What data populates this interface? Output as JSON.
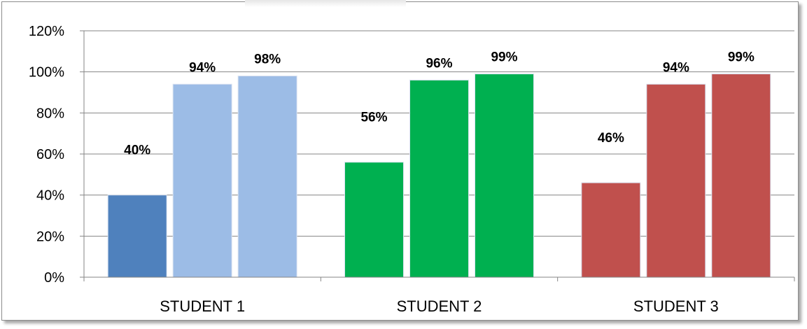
{
  "chart_data": {
    "type": "bar",
    "title": "",
    "xlabel": "",
    "ylabel": "",
    "ylim": [
      0,
      1.2
    ],
    "yticks": [
      "0%",
      "20%",
      "40%",
      "60%",
      "80%",
      "100%",
      "120%"
    ],
    "grid": true,
    "legend": "none",
    "groups": [
      {
        "category": "STUDENT 1",
        "values": [
          0.4,
          0.94,
          0.98
        ],
        "labels": [
          "40%",
          "94%",
          "98%"
        ],
        "colors": [
          "#4f81bd",
          "#9cbce6",
          "#9cbce6"
        ]
      },
      {
        "category": "STUDENT 2",
        "values": [
          0.56,
          0.96,
          0.99
        ],
        "labels": [
          "56%",
          "96%",
          "99%"
        ],
        "colors": [
          "#00b050",
          "#00b050",
          "#00b050"
        ]
      },
      {
        "category": "STUDENT 3",
        "values": [
          0.46,
          0.94,
          0.99
        ],
        "labels": [
          "46%",
          "94%",
          "99%"
        ],
        "colors": [
          "#c0504d",
          "#c0504d",
          "#c0504d"
        ]
      }
    ]
  }
}
